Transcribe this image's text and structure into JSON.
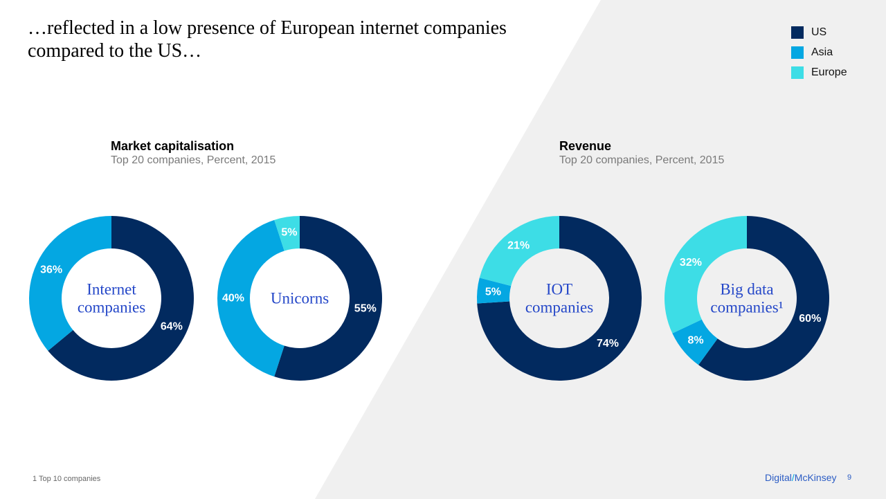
{
  "title": "…reflected in a low presence of European internet companies compared to the US…",
  "colors": {
    "US": "#022a5f",
    "Asia": "#04a7e2",
    "Europe": "#3ddde6",
    "center_text": "#2447c8",
    "background_panel": "#f0f0f0"
  },
  "legend": [
    {
      "label": "US",
      "color": "#022a5f"
    },
    {
      "label": "Asia",
      "color": "#04a7e2"
    },
    {
      "label": "Europe",
      "color": "#3ddde6"
    }
  ],
  "sections": {
    "market_cap": {
      "title": "Market capitalisation",
      "subtitle": "Top 20 companies, Percent, 2015"
    },
    "revenue": {
      "title": "Revenue",
      "subtitle": "Top 20 companies, Percent, 2015"
    }
  },
  "chart_data": [
    {
      "type": "pie",
      "style": "donut",
      "center_label": [
        "Internet",
        "companies"
      ],
      "slices": [
        {
          "name": "US",
          "value": 64,
          "label": "64%"
        },
        {
          "name": "Asia",
          "value": 36,
          "label": "36%"
        }
      ]
    },
    {
      "type": "pie",
      "style": "donut",
      "center_label": [
        "Unicorns"
      ],
      "slices": [
        {
          "name": "US",
          "value": 55,
          "label": "55%"
        },
        {
          "name": "Asia",
          "value": 40,
          "label": "40%"
        },
        {
          "name": "Europe",
          "value": 5,
          "label": "5%"
        }
      ]
    },
    {
      "type": "pie",
      "style": "donut",
      "center_label": [
        "IOT",
        "companies"
      ],
      "slices": [
        {
          "name": "US",
          "value": 74,
          "label": "74%"
        },
        {
          "name": "Asia",
          "value": 5,
          "label": "5%"
        },
        {
          "name": "Europe",
          "value": 21,
          "label": "21%"
        }
      ]
    },
    {
      "type": "pie",
      "style": "donut",
      "center_label": [
        "Big data",
        "companies¹"
      ],
      "slices": [
        {
          "name": "US",
          "value": 60,
          "label": "60%"
        },
        {
          "name": "Asia",
          "value": 8,
          "label": "8%"
        },
        {
          "name": "Europe",
          "value": 32,
          "label": "32%"
        }
      ]
    }
  ],
  "footnote": "1 Top 10 companies",
  "brand": {
    "left": "Digital",
    "slash": "/",
    "right": "McKinsey"
  },
  "page_number": "9"
}
